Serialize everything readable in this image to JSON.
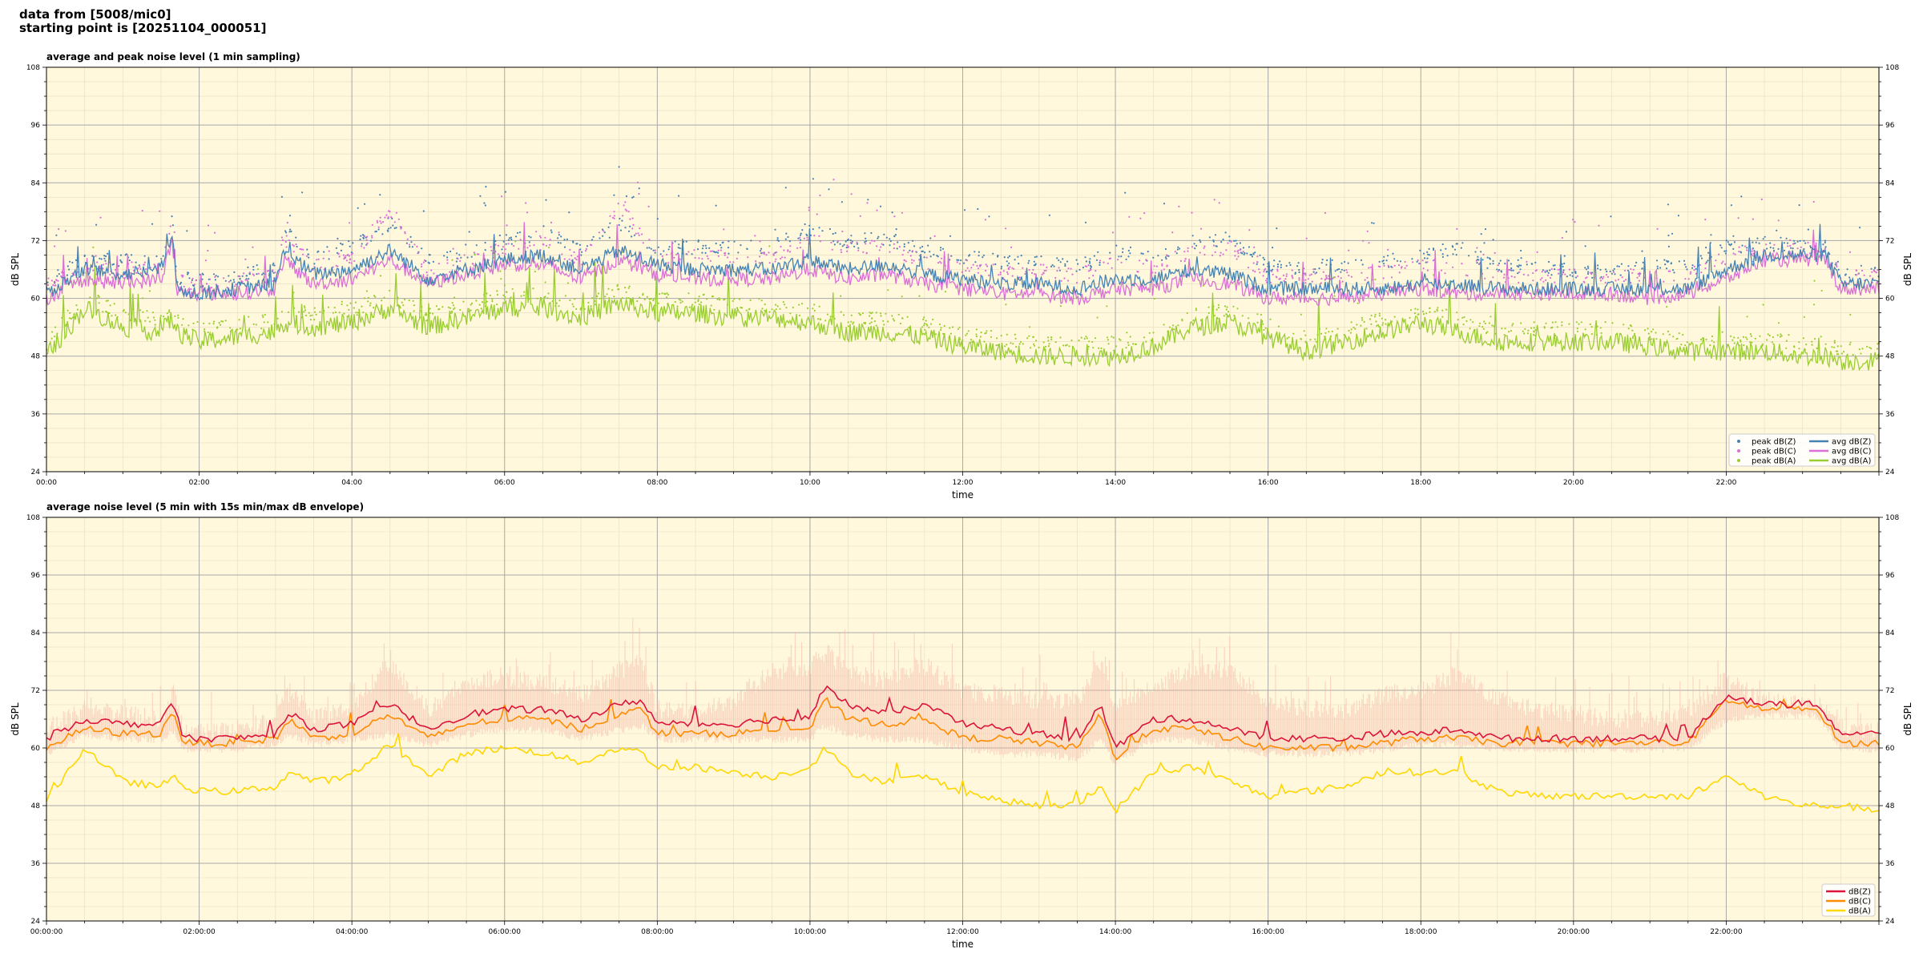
{
  "header": {
    "line1": "data from [5008/mic0]",
    "line2": "starting point is [20251104_000051]"
  },
  "colors": {
    "plot_bg": "#fff8dc",
    "avg_z": "#4682b4",
    "avg_c": "#da70d6",
    "avg_a": "#9acd32",
    "dbz": "#dc143c",
    "dbc": "#ff8c00",
    "dba": "#ffd700",
    "envelope": "#f4b6a8"
  },
  "chart_data": [
    {
      "type": "line",
      "title": "average and peak noise level (1 min sampling)",
      "xlabel": "time",
      "ylabel": "dB SPL",
      "xlim": [
        0,
        24
      ],
      "ylim": [
        24,
        108
      ],
      "yticks": [
        24,
        36,
        48,
        60,
        72,
        84,
        96,
        108
      ],
      "xticks": [
        "00:00",
        "02:00",
        "04:00",
        "06:00",
        "08:00",
        "10:00",
        "12:00",
        "14:00",
        "16:00",
        "18:00",
        "20:00",
        "22:00"
      ],
      "grid": true,
      "legend_position": "bottom-right",
      "x": [
        0,
        0.5,
        1,
        1.5,
        1.65,
        1.7,
        2,
        2.5,
        3,
        3.1,
        3.5,
        4,
        4.5,
        5,
        5.5,
        6,
        6.5,
        7,
        7.5,
        8,
        8.5,
        9,
        9.5,
        10,
        10.5,
        11,
        11.5,
        12,
        12.5,
        13,
        13.5,
        14,
        14.5,
        15,
        15.5,
        16,
        16.5,
        17,
        17.5,
        18,
        18.5,
        19,
        19.5,
        20,
        20.5,
        21,
        21.5,
        22,
        22.5,
        23,
        23.3,
        23.5,
        24
      ],
      "series": [
        {
          "name": "avg dB(Z)",
          "values": [
            61,
            66,
            65,
            66,
            74,
            62,
            61,
            62,
            63,
            70,
            65,
            66,
            70,
            64,
            66,
            68,
            69,
            66,
            70,
            67,
            66,
            66,
            66,
            68,
            66,
            67,
            65,
            64,
            63,
            63,
            62,
            64,
            64,
            66,
            65,
            62,
            62,
            62,
            62,
            63,
            63,
            62,
            62,
            62,
            62,
            62,
            62,
            66,
            69,
            69,
            69,
            63,
            63
          ]
        },
        {
          "name": "avg dB(C)",
          "values": [
            60,
            64,
            63,
            64,
            72,
            61,
            61,
            61,
            62,
            68,
            63,
            64,
            68,
            63,
            65,
            67,
            67,
            64,
            68,
            65,
            64,
            64,
            64,
            66,
            64,
            65,
            63,
            62,
            61,
            61,
            60,
            62,
            62,
            64,
            63,
            60,
            60,
            60,
            61,
            62,
            61,
            61,
            61,
            61,
            61,
            60,
            61,
            64,
            68,
            68,
            68,
            62,
            62
          ]
        },
        {
          "name": "avg dB(A)",
          "values": [
            48,
            58,
            54,
            53,
            56,
            53,
            51,
            52,
            53,
            55,
            54,
            55,
            58,
            54,
            56,
            58,
            58,
            56,
            59,
            57,
            57,
            56,
            56,
            55,
            53,
            53,
            52,
            50,
            49,
            48,
            48,
            48,
            50,
            54,
            55,
            52,
            49,
            51,
            53,
            55,
            53,
            51,
            51,
            51,
            51,
            50,
            49,
            49,
            49,
            48,
            48,
            47,
            47
          ]
        }
      ],
      "peaks": [
        {
          "name": "peak dB(Z)",
          "values": [
            63,
            68,
            67,
            68,
            77,
            64,
            63,
            64,
            66,
            74,
            68,
            70,
            75,
            67,
            69,
            71,
            73,
            69,
            75,
            70,
            70,
            70,
            70,
            74,
            71,
            72,
            69,
            68,
            67,
            67,
            66,
            69,
            68,
            71,
            72,
            66,
            66,
            66,
            67,
            68,
            70,
            66,
            66,
            65,
            65,
            66,
            66,
            70,
            71,
            70,
            70,
            65,
            65
          ]
        },
        {
          "name": "peak dB(C)",
          "values": [
            62,
            66,
            65,
            66,
            75,
            63,
            62,
            63,
            64,
            72,
            66,
            68,
            78,
            65,
            67,
            70,
            71,
            67,
            79,
            68,
            68,
            68,
            68,
            72,
            70,
            70,
            67,
            66,
            65,
            65,
            64,
            67,
            66,
            69,
            70,
            64,
            64,
            64,
            65,
            66,
            66,
            64,
            64,
            64,
            64,
            64,
            64,
            68,
            70,
            69,
            69,
            64,
            64
          ]
        },
        {
          "name": "peak dB(A)",
          "values": [
            50,
            60,
            56,
            55,
            58,
            55,
            53,
            54,
            55,
            57,
            56,
            57,
            60,
            56,
            58,
            60,
            60,
            58,
            61,
            59,
            59,
            58,
            58,
            57,
            55,
            55,
            54,
            52,
            51,
            50,
            50,
            50,
            52,
            56,
            57,
            54,
            51,
            53,
            55,
            57,
            55,
            53,
            53,
            53,
            53,
            52,
            51,
            51,
            51,
            50,
            50,
            49,
            49
          ]
        }
      ]
    },
    {
      "type": "line",
      "title": "average noise level (5 min with 15s min/max dB envelope)",
      "xlabel": "time",
      "ylabel": "dB SPL",
      "xlim": [
        0,
        24
      ],
      "ylim": [
        24,
        108
      ],
      "yticks": [
        24,
        36,
        48,
        60,
        72,
        84,
        96,
        108
      ],
      "xticks": [
        "00:00:00",
        "02:00:00",
        "04:00:00",
        "06:00:00",
        "08:00:00",
        "10:00:00",
        "12:00:00",
        "14:00:00",
        "16:00:00",
        "18:00:00",
        "20:00:00",
        "22:00:00"
      ],
      "grid": true,
      "legend_position": "bottom-right",
      "x": [
        0,
        0.5,
        1,
        1.5,
        1.65,
        1.8,
        2,
        2.5,
        3,
        3.2,
        3.5,
        4,
        4.5,
        5,
        5.5,
        6,
        6.5,
        7,
        7.5,
        7.8,
        8,
        8.5,
        9,
        9.5,
        10,
        10.2,
        10.5,
        11,
        11.5,
        12,
        12.5,
        13,
        13.5,
        13.8,
        14,
        14.5,
        15,
        15.5,
        16,
        16.5,
        17,
        17.5,
        18,
        18.5,
        19,
        19.5,
        20,
        20.5,
        21,
        21.5,
        22,
        22.5,
        23,
        23.2,
        23.5,
        24
      ],
      "series": [
        {
          "name": "dB(Z)",
          "values": [
            62,
            66,
            65,
            65,
            70,
            62,
            62,
            62,
            63,
            67,
            64,
            65,
            69,
            64,
            67,
            68,
            68,
            66,
            69,
            70,
            65,
            65,
            65,
            66,
            66,
            73,
            69,
            67,
            69,
            65,
            64,
            63,
            62,
            69,
            60,
            66,
            66,
            64,
            62,
            62,
            62,
            63,
            63,
            64,
            62,
            62,
            62,
            62,
            62,
            62,
            71,
            69,
            69,
            69,
            63,
            63
          ]
        },
        {
          "name": "dB(C)",
          "values": [
            60,
            64,
            63,
            63,
            68,
            61,
            61,
            61,
            62,
            66,
            62,
            63,
            67,
            62,
            65,
            66,
            66,
            64,
            67,
            68,
            63,
            63,
            63,
            64,
            64,
            70,
            66,
            65,
            66,
            62,
            62,
            61,
            60,
            67,
            58,
            64,
            64,
            62,
            60,
            60,
            60,
            61,
            62,
            62,
            61,
            61,
            61,
            61,
            61,
            61,
            70,
            68,
            68,
            68,
            61,
            61
          ]
        },
        {
          "name": "dB(A)",
          "values": [
            49,
            60,
            53,
            52,
            54,
            52,
            51,
            51,
            52,
            55,
            53,
            54,
            61,
            54,
            59,
            60,
            59,
            57,
            60,
            59,
            56,
            56,
            55,
            54,
            56,
            60,
            55,
            53,
            54,
            51,
            49,
            48,
            48,
            52,
            47,
            55,
            56,
            53,
            50,
            51,
            52,
            55,
            55,
            55,
            51,
            50,
            50,
            50,
            50,
            50,
            54,
            50,
            48,
            48,
            48,
            47
          ]
        }
      ],
      "envelope": {
        "name": "dB(Z) min/max",
        "upper": [
          66,
          70,
          69,
          68,
          74,
          65,
          65,
          66,
          68,
          74,
          69,
          70,
          80,
          70,
          76,
          76,
          76,
          73,
          78,
          80,
          70,
          70,
          72,
          78,
          79,
          82,
          78,
          76,
          79,
          74,
          73,
          72,
          72,
          80,
          70,
          75,
          78,
          78,
          72,
          70,
          70,
          73,
          74,
          78,
          72,
          70,
          69,
          68,
          68,
          70,
          76,
          72,
          71,
          71,
          66,
          66
        ],
        "lower": [
          58,
          62,
          61,
          61,
          63,
          59,
          59,
          59,
          60,
          62,
          60,
          61,
          62,
          60,
          62,
          63,
          63,
          61,
          63,
          64,
          61,
          61,
          61,
          61,
          61,
          64,
          62,
          61,
          61,
          59,
          58,
          58,
          57,
          61,
          56,
          61,
          61,
          59,
          58,
          58,
          58,
          59,
          60,
          60,
          59,
          59,
          59,
          59,
          59,
          59,
          65,
          66,
          66,
          66,
          59,
          59
        ]
      }
    }
  ]
}
